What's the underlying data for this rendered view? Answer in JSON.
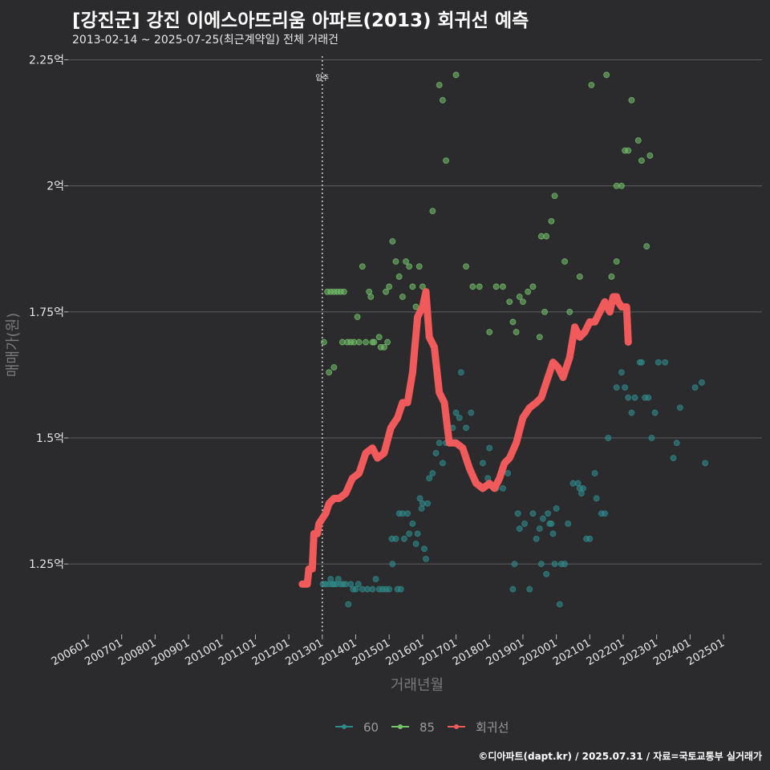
{
  "header": {
    "title": "[강진군] 강진 이에스아뜨리움 아파트(2013) 회귀선 예측",
    "subtitle": "2013-02-14 ~ 2025-07-25(최근계약일) 전체 거래건"
  },
  "footer": {
    "credit": "©디아파트(dapt.kr) / 2025.07.31 / 자료=국토교통부 실거래가"
  },
  "colors": {
    "background": "#2b2b2d",
    "grid": "#5e5e60",
    "s60": "#2e8b8b",
    "s85": "#74c46c",
    "trend": "#f05a5a"
  },
  "chart_data": {
    "type": "scatter",
    "title": "[강진군] 강진 이에스아뜨리움 아파트(2013) 회귀선 예측",
    "xlabel": "거래년월",
    "ylabel": "매매가(원)",
    "xlim": [
      2005.4,
      2026.15
    ],
    "ylim": [
      1.115,
      2.27
    ],
    "x_ticks": [
      2006,
      2007,
      2008,
      2009,
      2010,
      2011,
      2012,
      2013,
      2014,
      2015,
      2016,
      2017,
      2018,
      2019,
      2020,
      2021,
      2022,
      2023,
      2024,
      2025
    ],
    "x_tick_labels": [
      "200601",
      "200701",
      "200801",
      "200901",
      "201001",
      "201101",
      "201201",
      "201301",
      "201401",
      "201501",
      "201601",
      "201701",
      "201801",
      "201901",
      "202001",
      "202101",
      "202201",
      "202301",
      "202401",
      "202501"
    ],
    "y_ticks": [
      1.25,
      1.5,
      1.75,
      2.0,
      2.25
    ],
    "y_tick_labels": [
      "1.25억",
      "1.5억",
      "1.75억",
      "2억",
      "2.25억"
    ],
    "annotation": {
      "x": 2013.0,
      "label": "입주"
    },
    "legend": {
      "position": "bottom",
      "labels": [
        "60",
        "85",
        "회귀선"
      ]
    },
    "series": [
      {
        "name": "60",
        "points": [
          [
            2013.02,
            1.21
          ],
          [
            2013.1,
            1.21
          ],
          [
            2013.2,
            1.21
          ],
          [
            2013.25,
            1.22
          ],
          [
            2013.3,
            1.21
          ],
          [
            2013.35,
            1.21
          ],
          [
            2013.42,
            1.21
          ],
          [
            2013.48,
            1.22
          ],
          [
            2013.55,
            1.21
          ],
          [
            2013.62,
            1.21
          ],
          [
            2013.7,
            1.21
          ],
          [
            2013.78,
            1.17
          ],
          [
            2013.85,
            1.21
          ],
          [
            2013.92,
            1.2
          ],
          [
            2014.0,
            1.2
          ],
          [
            2014.08,
            1.21
          ],
          [
            2014.2,
            1.2
          ],
          [
            2014.35,
            1.2
          ],
          [
            2014.5,
            1.2
          ],
          [
            2014.6,
            1.22
          ],
          [
            2014.7,
            1.2
          ],
          [
            2014.8,
            1.2
          ],
          [
            2014.9,
            1.2
          ],
          [
            2015.0,
            1.2
          ],
          [
            2015.1,
            1.25
          ],
          [
            2015.25,
            1.2
          ],
          [
            2015.35,
            1.2
          ],
          [
            2015.08,
            1.3
          ],
          [
            2015.2,
            1.3
          ],
          [
            2015.3,
            1.35
          ],
          [
            2015.4,
            1.35
          ],
          [
            2015.45,
            1.3
          ],
          [
            2015.55,
            1.35
          ],
          [
            2015.6,
            1.31
          ],
          [
            2015.7,
            1.33
          ],
          [
            2015.8,
            1.29
          ],
          [
            2015.85,
            1.31
          ],
          [
            2015.92,
            1.38
          ],
          [
            2015.97,
            1.36
          ],
          [
            2016.0,
            1.37
          ],
          [
            2016.05,
            1.28
          ],
          [
            2016.1,
            1.26
          ],
          [
            2016.15,
            1.37
          ],
          [
            2016.2,
            1.42
          ],
          [
            2016.3,
            1.43
          ],
          [
            2016.4,
            1.47
          ],
          [
            2016.5,
            1.49
          ],
          [
            2016.6,
            1.45
          ],
          [
            2016.7,
            1.49
          ],
          [
            2016.9,
            1.52
          ],
          [
            2017.0,
            1.55
          ],
          [
            2017.1,
            1.54
          ],
          [
            2017.15,
            1.63
          ],
          [
            2017.3,
            1.52
          ],
          [
            2017.45,
            1.55
          ],
          [
            2017.8,
            1.45
          ],
          [
            2017.95,
            1.42
          ],
          [
            2018.0,
            1.48
          ],
          [
            2018.2,
            1.4
          ],
          [
            2018.4,
            1.4
          ],
          [
            2018.55,
            1.43
          ],
          [
            2018.7,
            1.2
          ],
          [
            2018.75,
            1.25
          ],
          [
            2018.85,
            1.35
          ],
          [
            2018.9,
            1.32
          ],
          [
            2019.05,
            1.33
          ],
          [
            2019.2,
            1.2
          ],
          [
            2019.3,
            1.35
          ],
          [
            2019.4,
            1.3
          ],
          [
            2019.5,
            1.32
          ],
          [
            2019.55,
            1.25
          ],
          [
            2019.6,
            1.34
          ],
          [
            2019.7,
            1.23
          ],
          [
            2019.75,
            1.35
          ],
          [
            2019.8,
            1.33
          ],
          [
            2019.85,
            1.33
          ],
          [
            2019.9,
            1.31
          ],
          [
            2019.95,
            1.25
          ],
          [
            2020.0,
            1.36
          ],
          [
            2020.1,
            1.17
          ],
          [
            2020.15,
            1.25
          ],
          [
            2020.25,
            1.25
          ],
          [
            2020.35,
            1.33
          ],
          [
            2020.5,
            1.41
          ],
          [
            2020.65,
            1.41
          ],
          [
            2020.7,
            1.4
          ],
          [
            2020.75,
            1.39
          ],
          [
            2020.8,
            1.4
          ],
          [
            2020.9,
            1.3
          ],
          [
            2021.0,
            1.3
          ],
          [
            2021.15,
            1.43
          ],
          [
            2021.2,
            1.38
          ],
          [
            2021.35,
            1.35
          ],
          [
            2021.45,
            1.35
          ],
          [
            2021.55,
            1.5
          ],
          [
            2021.8,
            1.6
          ],
          [
            2021.95,
            1.63
          ],
          [
            2022.05,
            1.6
          ],
          [
            2022.15,
            1.58
          ],
          [
            2022.25,
            1.55
          ],
          [
            2022.35,
            1.58
          ],
          [
            2022.5,
            1.65
          ],
          [
            2022.55,
            1.65
          ],
          [
            2022.65,
            1.58
          ],
          [
            2022.75,
            1.58
          ],
          [
            2022.85,
            1.5
          ],
          [
            2022.95,
            1.55
          ],
          [
            2023.05,
            1.65
          ],
          [
            2023.25,
            1.65
          ],
          [
            2023.5,
            1.46
          ],
          [
            2023.6,
            1.49
          ],
          [
            2023.7,
            1.56
          ],
          [
            2024.15,
            1.6
          ],
          [
            2024.35,
            1.61
          ],
          [
            2024.45,
            1.45
          ]
        ]
      },
      {
        "name": "85",
        "points": [
          [
            2013.05,
            1.69
          ],
          [
            2013.15,
            1.79
          ],
          [
            2013.25,
            1.79
          ],
          [
            2013.35,
            1.79
          ],
          [
            2013.45,
            1.79
          ],
          [
            2013.55,
            1.79
          ],
          [
            2013.2,
            1.63
          ],
          [
            2013.35,
            1.64
          ],
          [
            2013.6,
            1.69
          ],
          [
            2013.65,
            1.79
          ],
          [
            2013.75,
            1.69
          ],
          [
            2013.85,
            1.69
          ],
          [
            2013.95,
            1.69
          ],
          [
            2014.05,
            1.74
          ],
          [
            2014.1,
            1.69
          ],
          [
            2014.2,
            1.84
          ],
          [
            2014.3,
            1.69
          ],
          [
            2014.4,
            1.79
          ],
          [
            2014.5,
            1.69
          ],
          [
            2014.55,
            1.69
          ],
          [
            2014.7,
            1.7
          ],
          [
            2014.75,
            1.68
          ],
          [
            2014.85,
            1.68
          ],
          [
            2014.95,
            1.69
          ],
          [
            2014.45,
            1.78
          ],
          [
            2014.9,
            1.79
          ],
          [
            2015.0,
            1.8
          ],
          [
            2015.1,
            1.89
          ],
          [
            2015.2,
            1.85
          ],
          [
            2015.3,
            1.82
          ],
          [
            2015.4,
            1.78
          ],
          [
            2015.5,
            1.85
          ],
          [
            2015.6,
            1.84
          ],
          [
            2015.7,
            1.8
          ],
          [
            2015.8,
            1.76
          ],
          [
            2015.9,
            1.84
          ],
          [
            2016.0,
            1.8
          ],
          [
            2016.3,
            1.95
          ],
          [
            2016.5,
            2.2
          ],
          [
            2016.6,
            2.17
          ],
          [
            2016.7,
            2.05
          ],
          [
            2017.0,
            2.22
          ],
          [
            2017.3,
            1.84
          ],
          [
            2017.5,
            1.8
          ],
          [
            2017.7,
            1.8
          ],
          [
            2018.0,
            1.71
          ],
          [
            2018.2,
            1.8
          ],
          [
            2018.4,
            1.8
          ],
          [
            2018.6,
            1.77
          ],
          [
            2018.7,
            1.73
          ],
          [
            2018.8,
            1.71
          ],
          [
            2018.9,
            1.78
          ],
          [
            2019.0,
            1.77
          ],
          [
            2019.15,
            1.79
          ],
          [
            2019.3,
            1.8
          ],
          [
            2019.5,
            1.7
          ],
          [
            2019.55,
            1.9
          ],
          [
            2019.65,
            1.75
          ],
          [
            2019.7,
            1.9
          ],
          [
            2019.85,
            1.93
          ],
          [
            2019.95,
            1.98
          ],
          [
            2020.25,
            1.85
          ],
          [
            2020.4,
            1.75
          ],
          [
            2020.7,
            1.82
          ],
          [
            2021.05,
            2.2
          ],
          [
            2021.5,
            2.22
          ],
          [
            2021.65,
            1.82
          ],
          [
            2021.8,
            2.0
          ],
          [
            2021.95,
            2.0
          ],
          [
            2022.05,
            2.07
          ],
          [
            2022.15,
            2.07
          ],
          [
            2022.25,
            2.17
          ],
          [
            2022.45,
            2.09
          ],
          [
            2022.55,
            2.05
          ],
          [
            2022.7,
            1.88
          ],
          [
            2022.8,
            2.06
          ],
          [
            2021.8,
            1.85
          ]
        ]
      },
      {
        "name": "회귀선",
        "points": [
          [
            2012.4,
            1.21
          ],
          [
            2012.55,
            1.21
          ],
          [
            2012.6,
            1.24
          ],
          [
            2012.7,
            1.24
          ],
          [
            2012.75,
            1.31
          ],
          [
            2012.85,
            1.31
          ],
          [
            2012.9,
            1.33
          ],
          [
            2013.0,
            1.34
          ],
          [
            2013.1,
            1.35
          ],
          [
            2013.2,
            1.37
          ],
          [
            2013.35,
            1.38
          ],
          [
            2013.5,
            1.38
          ],
          [
            2013.7,
            1.39
          ],
          [
            2013.9,
            1.42
          ],
          [
            2014.1,
            1.43
          ],
          [
            2014.3,
            1.47
          ],
          [
            2014.5,
            1.48
          ],
          [
            2014.65,
            1.46
          ],
          [
            2014.85,
            1.47
          ],
          [
            2015.05,
            1.52
          ],
          [
            2015.25,
            1.54
          ],
          [
            2015.4,
            1.57
          ],
          [
            2015.55,
            1.57
          ],
          [
            2015.7,
            1.63
          ],
          [
            2015.85,
            1.74
          ],
          [
            2016.0,
            1.76
          ],
          [
            2016.1,
            1.79
          ],
          [
            2016.2,
            1.7
          ],
          [
            2016.35,
            1.68
          ],
          [
            2016.5,
            1.59
          ],
          [
            2016.65,
            1.57
          ],
          [
            2016.8,
            1.49
          ],
          [
            2017.0,
            1.49
          ],
          [
            2017.2,
            1.48
          ],
          [
            2017.4,
            1.44
          ],
          [
            2017.6,
            1.41
          ],
          [
            2017.8,
            1.4
          ],
          [
            2018.0,
            1.41
          ],
          [
            2018.15,
            1.4
          ],
          [
            2018.3,
            1.42
          ],
          [
            2018.45,
            1.45
          ],
          [
            2018.6,
            1.46
          ],
          [
            2018.8,
            1.49
          ],
          [
            2019.0,
            1.54
          ],
          [
            2019.2,
            1.56
          ],
          [
            2019.4,
            1.57
          ],
          [
            2019.55,
            1.58
          ],
          [
            2019.75,
            1.62
          ],
          [
            2019.9,
            1.65
          ],
          [
            2020.05,
            1.64
          ],
          [
            2020.2,
            1.62
          ],
          [
            2020.4,
            1.66
          ],
          [
            2020.55,
            1.72
          ],
          [
            2020.7,
            1.7
          ],
          [
            2020.85,
            1.71
          ],
          [
            2021.0,
            1.73
          ],
          [
            2021.15,
            1.73
          ],
          [
            2021.3,
            1.75
          ],
          [
            2021.45,
            1.77
          ],
          [
            2021.6,
            1.75
          ],
          [
            2021.7,
            1.78
          ],
          [
            2021.8,
            1.78
          ],
          [
            2021.85,
            1.77
          ],
          [
            2021.95,
            1.76
          ],
          [
            2022.1,
            1.76
          ],
          [
            2022.15,
            1.69
          ]
        ]
      }
    ]
  }
}
